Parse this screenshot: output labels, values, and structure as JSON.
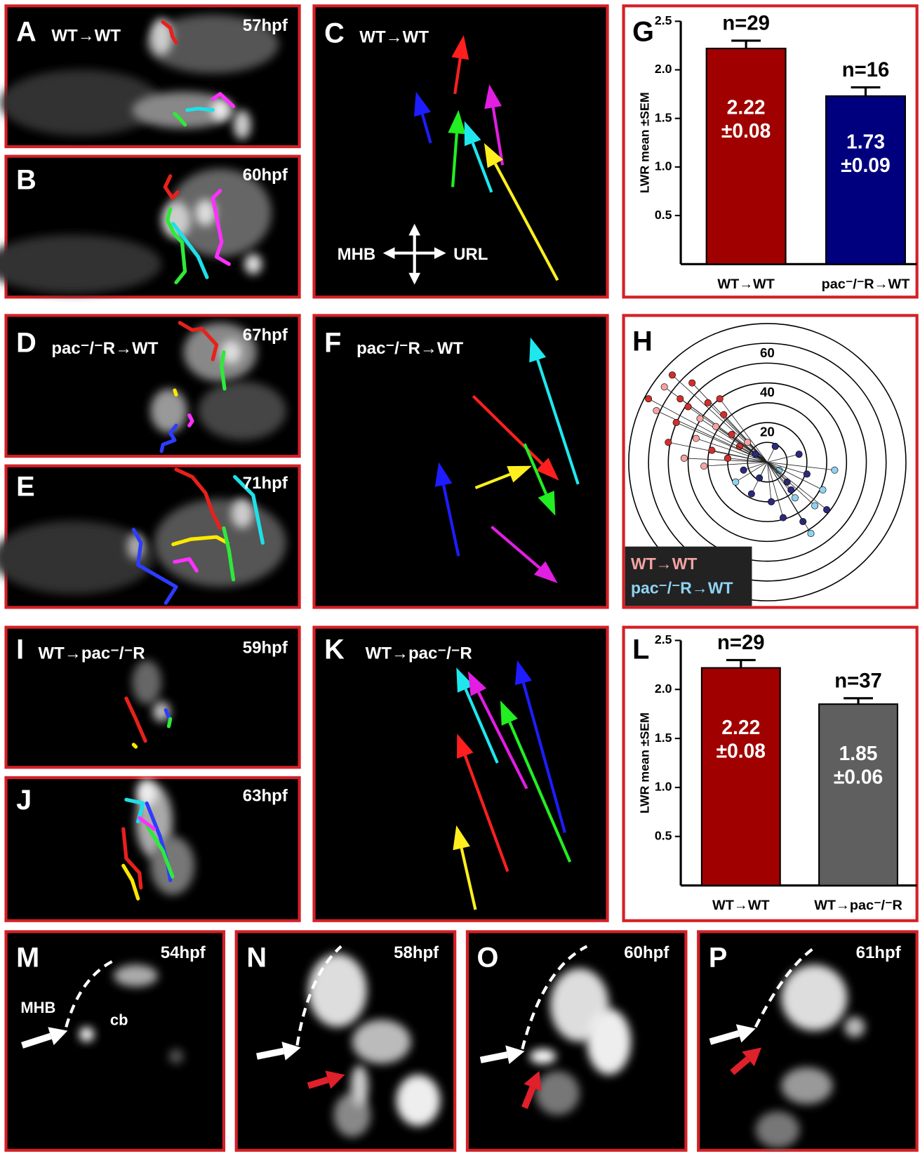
{
  "panels": {
    "A": {
      "letter": "A",
      "label": "WT→WT",
      "time": "57hpf"
    },
    "B": {
      "letter": "B",
      "time": "60hpf"
    },
    "C": {
      "letter": "C",
      "label": "WT→WT",
      "axis_left": "MHB",
      "axis_right": "URL"
    },
    "D": {
      "letter": "D",
      "label": "pac⁻/⁻R→WT",
      "time": "67hpf"
    },
    "E": {
      "letter": "E",
      "time": "71hpf"
    },
    "F": {
      "letter": "F",
      "label": "pac⁻/⁻R→WT"
    },
    "I": {
      "letter": "I",
      "label": "WT→pac⁻/⁻R",
      "time": "59hpf"
    },
    "J": {
      "letter": "J",
      "time": "63hpf"
    },
    "K": {
      "letter": "K",
      "label": "WT→pac⁻/⁻R"
    },
    "M": {
      "letter": "M",
      "time": "54hpf",
      "boundary": "MHB",
      "region": "cb"
    },
    "N": {
      "letter": "N",
      "time": "58hpf"
    },
    "O": {
      "letter": "O",
      "time": "60hpf"
    },
    "P": {
      "letter": "P",
      "time": "61hpf"
    }
  },
  "chart_data": [
    {
      "type": "bar",
      "letter": "G",
      "ylabel": "LWR mean ±SEM",
      "categories": [
        "WT→WT",
        "pac⁻/⁻R→WT"
      ],
      "values": [
        2.22,
        1.73
      ],
      "errors": [
        0.08,
        0.09
      ],
      "error_labels": [
        "±0.08",
        "±0.09"
      ],
      "n_labels": [
        "n=29",
        "n=16"
      ],
      "colors": [
        "#a00000",
        "#00007f"
      ],
      "ylim": [
        0,
        2.5
      ],
      "yticks": [
        0.5,
        {
          "value": 1,
          "label": "1.0"
        },
        1.5,
        {
          "value": 2,
          "label": "2.0"
        },
        2.5
      ]
    },
    {
      "type": "polar-scatter",
      "letter": "H",
      "xlim": [
        -70,
        70
      ],
      "ylim": [
        -70,
        70
      ],
      "rings": [
        10,
        30,
        50,
        70
      ],
      "rticks": [
        20,
        40,
        60
      ],
      "series": [
        {
          "name": "WT→WT",
          "color": "#f4a3a3",
          "marker_color": "#d0302c",
          "x": [
            -52,
            -48,
            -44,
            -56,
            -38,
            -40,
            -34,
            -30,
            -46,
            -26,
            -22,
            -50,
            -36,
            -18,
            -28,
            -42,
            -24,
            -14,
            -32,
            -20,
            -60,
            -10
          ],
          "y": [
            38,
            44,
            32,
            26,
            40,
            28,
            22,
            30,
            20,
            18,
            24,
            10,
            12,
            14,
            6,
            2,
            32,
            8,
            -2,
            2,
            32,
            10
          ]
        },
        {
          "name": "pac⁻/⁻R→WT",
          "color": "#8fd3f2",
          "marker_color": "#2b2a7c",
          "x": [
            6,
            10,
            -4,
            14,
            20,
            2,
            24,
            -8,
            16,
            28,
            8,
            -12,
            34,
            18,
            -6,
            22,
            4,
            30,
            -16,
            12
          ],
          "y": [
            -4,
            -10,
            -8,
            -18,
            -6,
            -20,
            -22,
            -16,
            4,
            -14,
            -28,
            -4,
            -4,
            -30,
            4,
            -36,
            8,
            -24,
            -10,
            -14
          ]
        }
      ]
    },
    {
      "type": "bar",
      "letter": "L",
      "ylabel": "LWR mean ±SEM",
      "categories": [
        "WT→WT",
        "WT→pac⁻/⁻R"
      ],
      "values": [
        2.22,
        1.85
      ],
      "errors": [
        0.08,
        0.06
      ],
      "error_labels": [
        "±0.08",
        "±0.06"
      ],
      "n_labels": [
        "n=29",
        "n=37"
      ],
      "colors": [
        "#a00000",
        "#5f5f5f"
      ],
      "ylim": [
        0,
        2.5
      ],
      "yticks": [
        0.5,
        {
          "value": 1,
          "label": "1.0"
        },
        1.5,
        {
          "value": 2,
          "label": "2.0"
        },
        2.5
      ]
    }
  ]
}
